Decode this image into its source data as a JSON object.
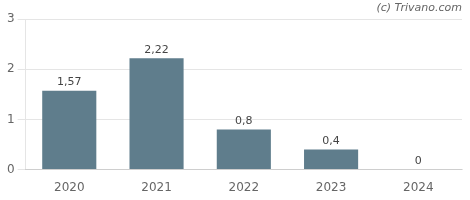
{
  "chart_data": {
    "type": "bar",
    "categories": [
      "2020",
      "2021",
      "2022",
      "2023",
      "2024"
    ],
    "values": [
      1.57,
      2.22,
      0.8,
      0.4,
      0
    ],
    "value_labels": [
      "1,57",
      "2,22",
      "0,8",
      "0,4",
      "0"
    ],
    "color": "#5f7d8c",
    "ylim": [
      0,
      3
    ],
    "yticks": [
      0,
      1,
      2,
      3
    ],
    "grid": true,
    "data_labels": true,
    "annotations": [
      "(c) Trivano.com"
    ]
  }
}
